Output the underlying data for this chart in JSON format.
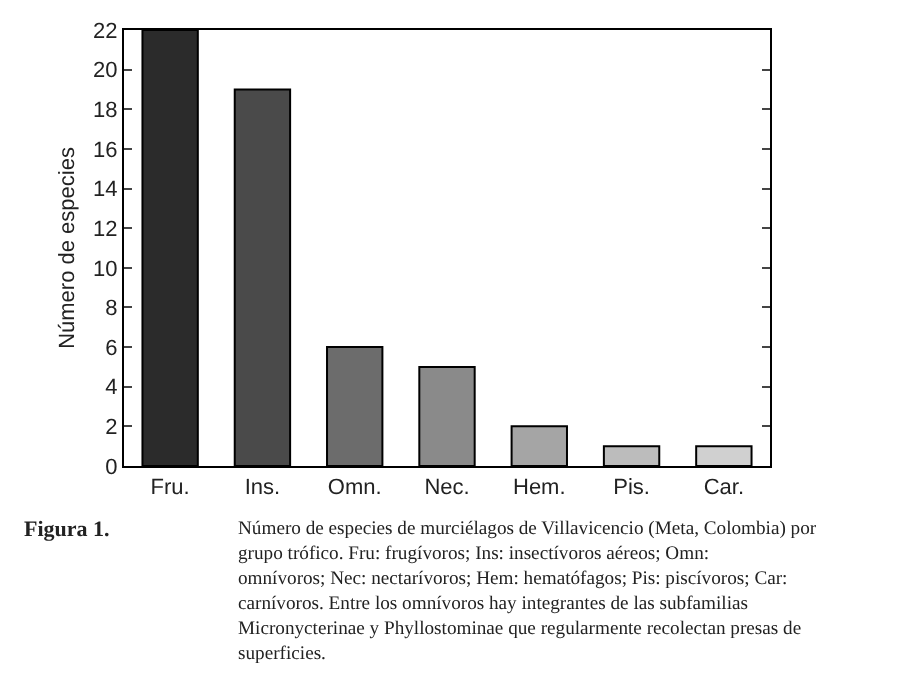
{
  "chart_data": {
    "type": "bar",
    "ylabel": "Número de especies",
    "categories": [
      "Fru.",
      "Ins.",
      "Omn.",
      "Nec.",
      "Hem.",
      "Pis.",
      "Car."
    ],
    "values": [
      22,
      19,
      6,
      5,
      2,
      1,
      1
    ],
    "colors": [
      "#2b2b2b",
      "#4a4a4a",
      "#6c6c6c",
      "#8a8a8a",
      "#a5a5a5",
      "#bcbcbc",
      "#d0d0d0"
    ],
    "ylim": [
      0,
      22
    ],
    "yticks": [
      0,
      2,
      4,
      6,
      8,
      10,
      12,
      14,
      16,
      18,
      20,
      22
    ],
    "annotations": [
      "Figura 1.",
      "Número de especies de murciélagos de Villavicencio (Meta, Colombia) por grupo trófico. Fru: frugívoros; Ins: insectívoros aéreos; Omn: omnívoros; Nec: nectarívoros; Hem: hematófagos; Pis: piscívoros; Car: carnívoros. Entre los omnívoros hay integrantes de las subfamilias Micronycterinae y Phyllostominae que regularmente recolectan presas de superficies."
    ]
  }
}
